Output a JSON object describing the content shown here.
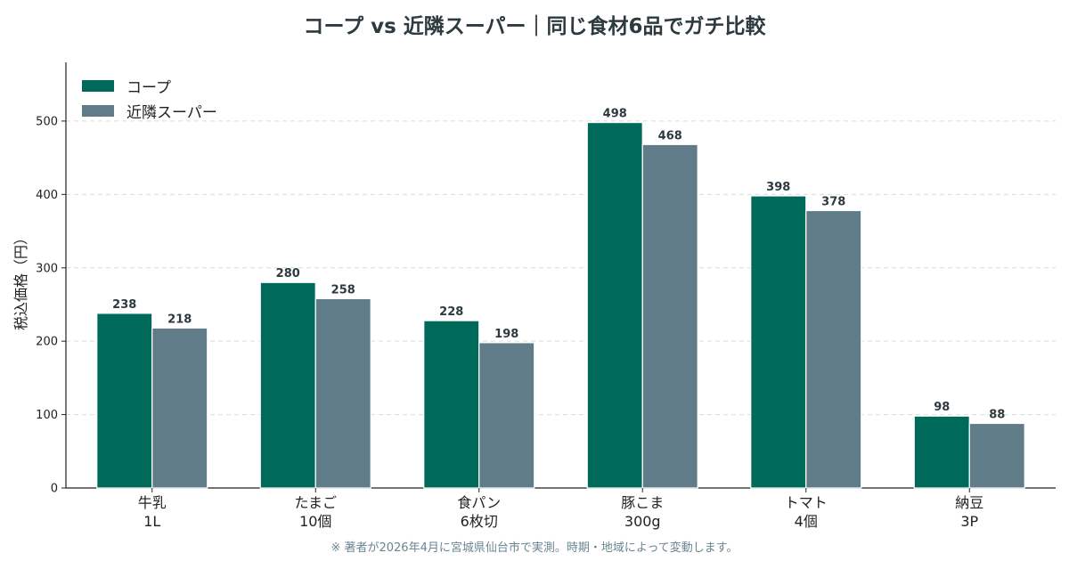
{
  "title": "コープ vs 近隣スーパー｜同じ食材6品でガチ比較",
  "footnote": "※ 著者が2026年4月に宮城県仙台市で実測。時期・地域によって変動します。",
  "chart_data": {
    "type": "bar",
    "title": "コープ vs 近隣スーパー｜同じ食材6品でガチ比較",
    "xlabel": "",
    "ylabel": "税込価格（円）",
    "ylim": [
      0,
      580
    ],
    "yticks": [
      0,
      100,
      200,
      300,
      400,
      500
    ],
    "grid": true,
    "legend_position": "top-left",
    "categories": [
      [
        "牛乳",
        "1L"
      ],
      [
        "たまご",
        "10個"
      ],
      [
        "食パン",
        "6枚切"
      ],
      [
        "豚こま",
        "300g"
      ],
      [
        "トマト",
        "4個"
      ],
      [
        "納豆",
        "3P"
      ]
    ],
    "series": [
      {
        "name": "コープ",
        "color": "#006a5a",
        "values": [
          238,
          280,
          228,
          498,
          398,
          98
        ]
      },
      {
        "name": "近隣スーパー",
        "color": "#607c89",
        "values": [
          218,
          258,
          198,
          468,
          378,
          88
        ]
      }
    ]
  }
}
